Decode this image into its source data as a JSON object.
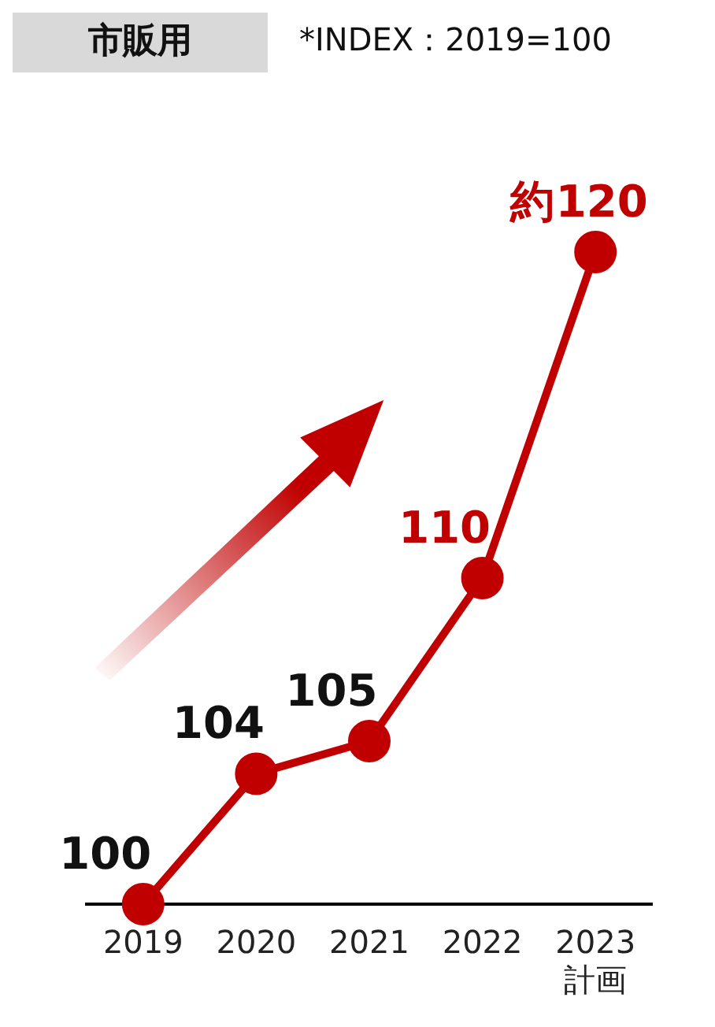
{
  "chart_data": {
    "type": "line",
    "title": "市販用",
    "subtitle": "*INDEX：2019=100",
    "categories": [
      "2019",
      "2020",
      "2021",
      "2022",
      "2023\n計画"
    ],
    "series": [
      {
        "color": "#c00000",
        "values": [
          100,
          104,
          105,
          110,
          120
        ]
      }
    ],
    "data_labels": true,
    "annotations": [
      "約"
    ],
    "tick_labels": "x",
    "grid": false,
    "legend": false,
    "marker": "circle",
    "line_style": "solid"
  }
}
